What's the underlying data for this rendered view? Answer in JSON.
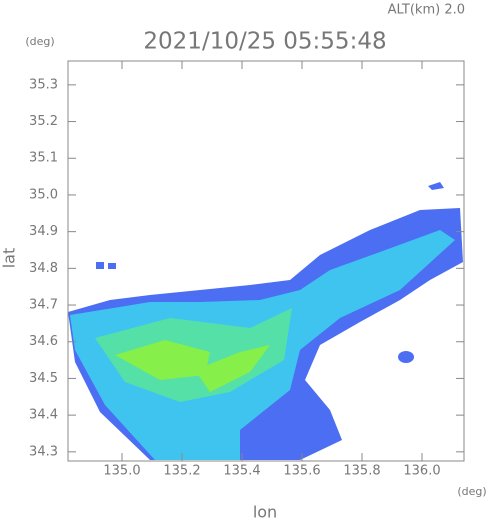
{
  "chart_data": {
    "type": "radar-map",
    "title": "2021/10/25 05:55:48",
    "annotation": "ALT(km) 2.0",
    "x_label": "lon",
    "y_label": "lat",
    "x_unit": "(deg)",
    "y_unit": "(deg)",
    "xlim": [
      134.82,
      136.14
    ],
    "ylim": [
      34.275,
      35.365
    ],
    "xticks": [
      {
        "value": 135,
        "label": "135.0"
      },
      135.2,
      135.4,
      135.6,
      135.8,
      {
        "value": 136,
        "label": "136.0"
      }
    ],
    "yticks": [
      34.3,
      34.4,
      34.5,
      34.6,
      34.7,
      34.8,
      34.9,
      {
        "value": 35,
        "label": "35.0"
      },
      35.1,
      35.2,
      35.3
    ]
  }
}
